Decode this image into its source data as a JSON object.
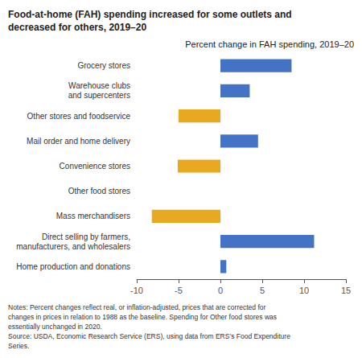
{
  "chart_data": {
    "type": "bar",
    "orientation": "horizontal",
    "title": "Food-at-home (FAH) spending increased for some outlets and\ndecreased for others, 2019–20",
    "subtitle": "Percent change in FAH spending, 2019–20",
    "categories": [
      "Home production and donations",
      "Direct selling by farmers,\nmanufacturers, and wholesalers",
      "Mass merchandisers",
      "Other food stores",
      "Convenience stores",
      "Mail order and home delivery",
      "Other stores and foodservice",
      "Warehouse clubs\nand supercenters",
      "Grocery stores"
    ],
    "values": [
      0.7,
      11.2,
      -8.2,
      0.0,
      -5.1,
      4.5,
      -5.0,
      3.5,
      8.5
    ],
    "colors": [
      "#4472c4",
      "#4472c4",
      "#e8a820",
      "#4472c4",
      "#e8a820",
      "#4472c4",
      "#e8a820",
      "#4472c4",
      "#4472c4"
    ],
    "xlim": [
      -10,
      15
    ],
    "xticks": [
      -10,
      -5,
      0,
      5,
      10,
      15
    ],
    "grid": false,
    "annotations": [
      "Notes: Percent changes reflect real, or inflation-adjusted, prices that are corrected for",
      "changes in prices in relation to 1988 as the baseline. Spending for Other food stores was",
      "essentially unchanged in 2020.",
      "Source: USDA, Economic Research Service (ERS), using data from ERS’s Food Expenditure",
      "Series."
    ]
  }
}
